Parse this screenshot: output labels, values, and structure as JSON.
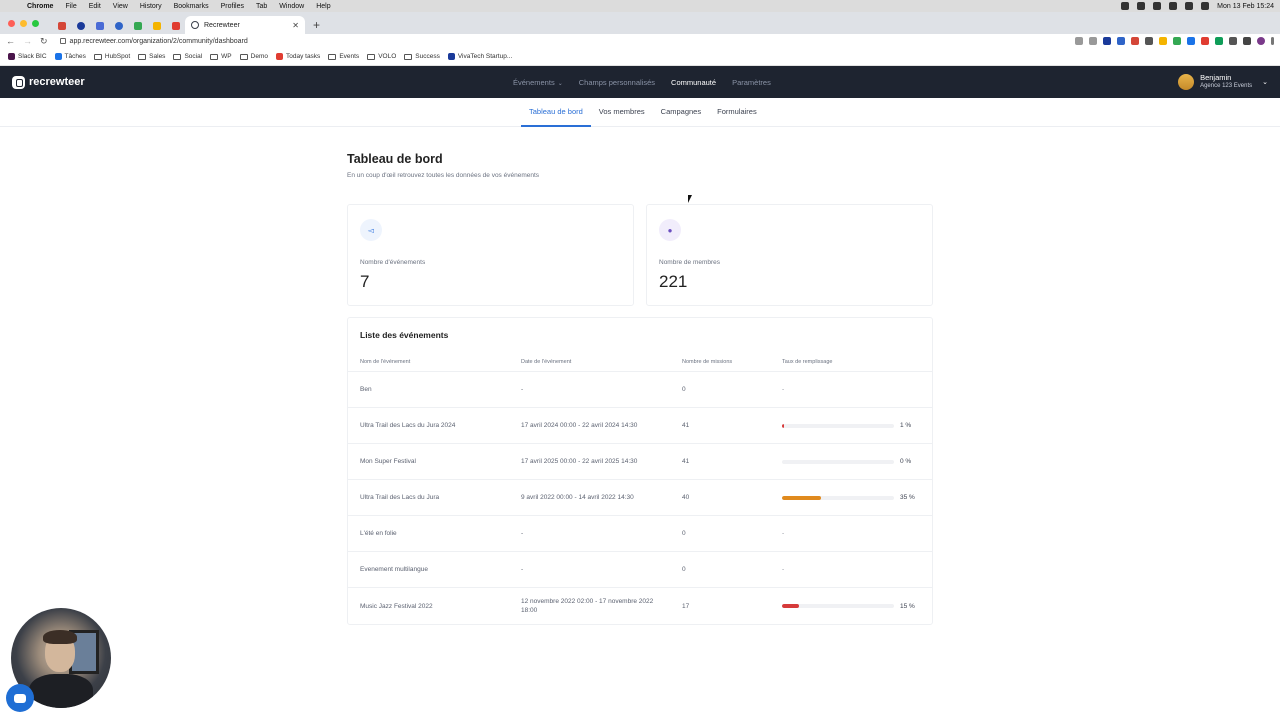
{
  "macos": {
    "menu": [
      "Chrome",
      "File",
      "Edit",
      "View",
      "History",
      "Bookmarks",
      "Profiles",
      "Tab",
      "Window",
      "Help"
    ],
    "clock": "Mon 13 Feb  15:24"
  },
  "browser": {
    "active_tab_title": "Recrewteer",
    "url": "app.recrewteer.com/organization/2/community/dashboard",
    "bookmarks": [
      "Slack BIC",
      "Tâches",
      "HubSpot",
      "Sales",
      "Social",
      "WP",
      "Demo",
      "Today tasks",
      "Events",
      "VOLO",
      "Success",
      "VivaTech Startup..."
    ]
  },
  "app": {
    "logo_text": "recrewteer",
    "nav": [
      {
        "label": "Événements",
        "has_dropdown": true,
        "active": false
      },
      {
        "label": "Champs personnalisés",
        "active": false
      },
      {
        "label": "Communauté",
        "active": true
      },
      {
        "label": "Paramètres",
        "active": false
      }
    ],
    "user": {
      "name": "Benjamin",
      "org": "Agence 123 Events"
    },
    "subnav": [
      {
        "label": "Tableau de bord",
        "active": true
      },
      {
        "label": "Vos membres",
        "active": false
      },
      {
        "label": "Campagnes",
        "active": false
      },
      {
        "label": "Formulaires",
        "active": false
      }
    ]
  },
  "page": {
    "title": "Tableau de bord",
    "subtitle": "En un coup d'œil retrouvez toutes les données de vos événements"
  },
  "stats": [
    {
      "label": "Nombre d'événements",
      "value": "7",
      "icon": "megaphone-icon"
    },
    {
      "label": "Nombre de membres",
      "value": "221",
      "icon": "user-icon"
    }
  ],
  "events_table": {
    "title": "Liste des événements",
    "headers": [
      "Nom de l'événement",
      "Date de l'événement",
      "Nombre de missions",
      "Taux de remplissage"
    ],
    "rows": [
      {
        "name": "Ben",
        "date": "-",
        "missions": "0",
        "fill": "-",
        "fill_pct": null,
        "color": ""
      },
      {
        "name": "Ultra Trail des Lacs du Jura 2024",
        "date": "17 avril 2024 00:00 - 22 avril 2024 14:30",
        "missions": "41",
        "fill": "1 %",
        "fill_pct": 1,
        "color": "#d63a3a"
      },
      {
        "name": "Mon Super Festival",
        "date": "17 avril 2025 00:00 - 22 avril 2025 14:30",
        "missions": "41",
        "fill": "0 %",
        "fill_pct": 0,
        "color": "#d63a3a"
      },
      {
        "name": "Ultra Trail des Lacs du Jura",
        "date": "9 avril 2022 00:00 - 14 avril 2022 14:30",
        "missions": "40",
        "fill": "35 %",
        "fill_pct": 35,
        "color": "#e08a1e"
      },
      {
        "name": "L'été en folie",
        "date": "-",
        "missions": "0",
        "fill": "-",
        "fill_pct": null,
        "color": ""
      },
      {
        "name": "Evenement multilangue",
        "date": "-",
        "missions": "0",
        "fill": "-",
        "fill_pct": null,
        "color": ""
      },
      {
        "name": "Music Jazz Festival 2022",
        "date": "12 novembre 2022 02:00 - 17 novembre 2022 18:00",
        "missions": "17",
        "fill": "15 %",
        "fill_pct": 15,
        "color": "#d63a3a"
      }
    ]
  }
}
